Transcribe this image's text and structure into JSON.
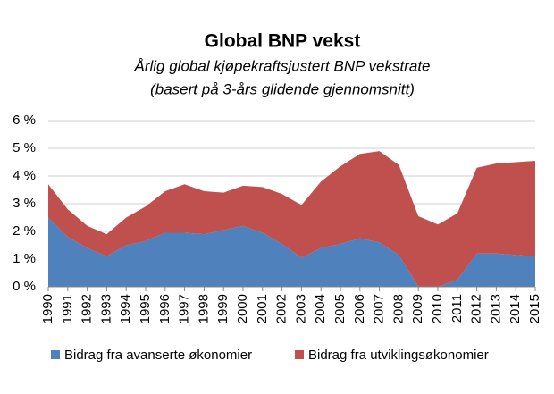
{
  "chart_data": {
    "type": "stacked_area",
    "title": "Global BNP vekst",
    "subtitle": [
      "Årlig global kjøpekraftsjustert BNP vekstrate",
      "(basert på 3-års glidende gjennomsnitt)"
    ],
    "categories": [
      "1990",
      "1991",
      "1992",
      "1993",
      "1994",
      "1995",
      "1996",
      "1997",
      "1998",
      "1999",
      "2000",
      "2001",
      "2002",
      "2003",
      "2004",
      "2005",
      "2006",
      "2007",
      "2008",
      "2009",
      "2010",
      "2011",
      "2012",
      "2013",
      "2014",
      "2015"
    ],
    "series": [
      {
        "name": "Bidrag fra avanserte økonomier",
        "color": "#4f81bd",
        "values": [
          2.5,
          1.8,
          1.4,
          1.1,
          1.5,
          1.65,
          1.95,
          1.95,
          1.9,
          2.05,
          2.2,
          1.95,
          1.55,
          1.05,
          1.4,
          1.55,
          1.75,
          1.6,
          1.15,
          0.0,
          0.0,
          0.25,
          1.2,
          1.2,
          1.15,
          1.1
        ]
      },
      {
        "name": "Bidrag fra utviklingsøkonomier",
        "color": "#c0504d",
        "values": [
          1.2,
          1.0,
          0.8,
          0.8,
          1.0,
          1.25,
          1.5,
          1.75,
          1.55,
          1.35,
          1.45,
          1.65,
          1.8,
          1.9,
          2.4,
          2.8,
          3.05,
          3.3,
          3.25,
          2.55,
          2.25,
          2.4,
          3.1,
          3.25,
          3.35,
          3.45
        ]
      }
    ],
    "ylim": [
      0,
      6
    ],
    "yticks": [
      {
        "value": 0,
        "label": "0 %"
      },
      {
        "value": 1,
        "label": "1 %"
      },
      {
        "value": 2,
        "label": "2 %"
      },
      {
        "value": 3,
        "label": "3 %"
      },
      {
        "value": 4,
        "label": "4 %"
      },
      {
        "value": 5,
        "label": "5 %"
      },
      {
        "value": 6,
        "label": "6 %"
      }
    ],
    "grid": true,
    "legend": "bottom"
  }
}
